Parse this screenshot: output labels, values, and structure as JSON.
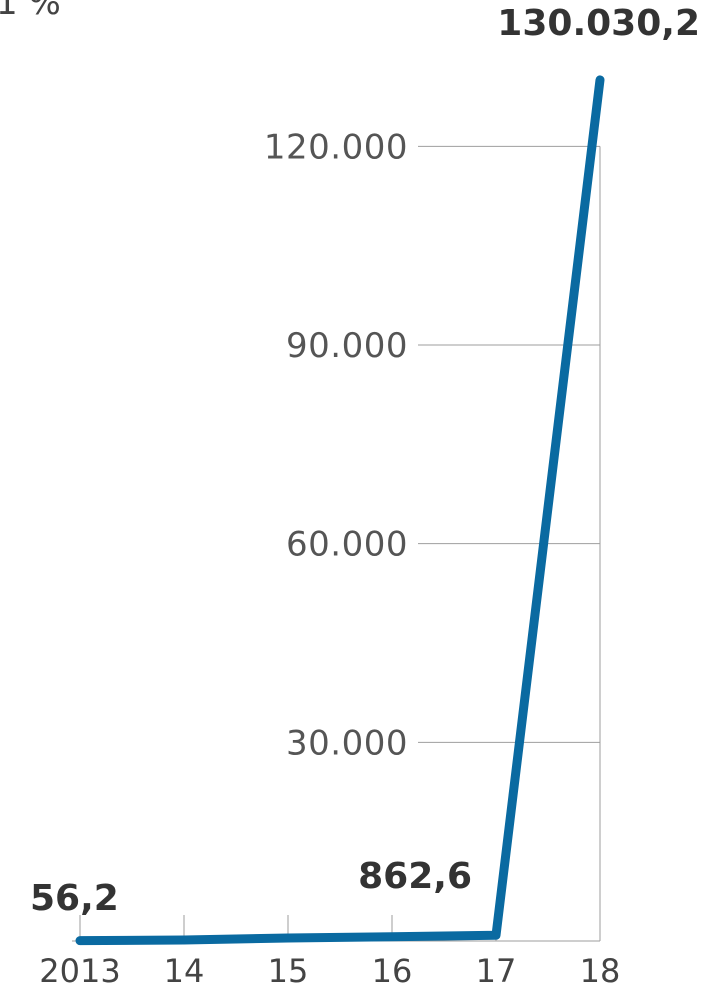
{
  "chart_data": {
    "type": "line",
    "title": "",
    "xlabel": "",
    "ylabel": "",
    "unit_label": "1 %",
    "categories": [
      "2013",
      "14",
      "15",
      "16",
      "17",
      "18"
    ],
    "series": [
      {
        "name": "",
        "values": [
          56.2,
          150,
          450,
          650,
          862.6,
          130030.2
        ]
      }
    ],
    "ylim": [
      0,
      135000
    ],
    "yticks": [
      30000,
      60000,
      90000,
      120000
    ],
    "ytick_labels": [
      "30.000",
      "60.000",
      "90.000",
      "120.000"
    ],
    "data_labels": [
      {
        "index": 0,
        "text": "56,2"
      },
      {
        "index": 4,
        "text": "862,6"
      },
      {
        "index": 5,
        "text": "130.030,2"
      }
    ],
    "grid": true,
    "legend": "none",
    "colors": {
      "line": "#0a6aa1",
      "grid": "#9e9e9e"
    }
  }
}
